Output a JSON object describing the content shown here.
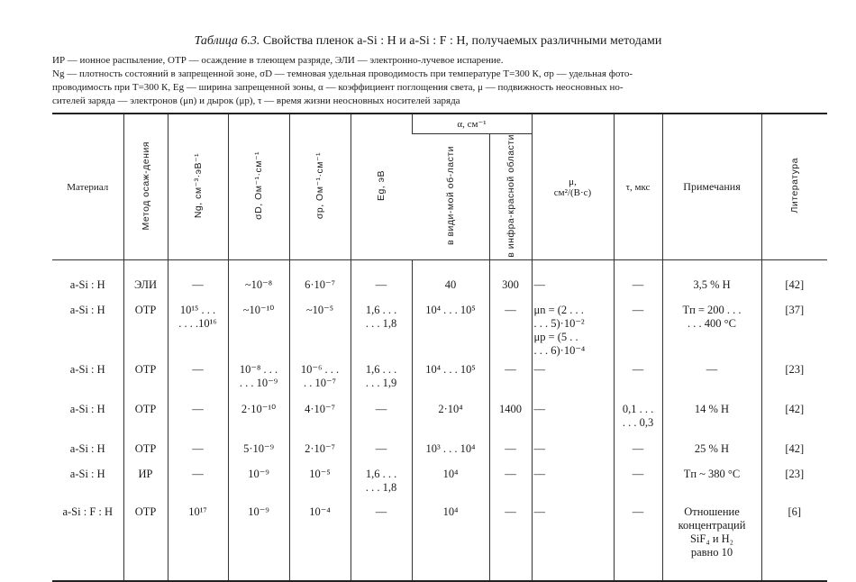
{
  "title": {
    "label": "Таблица 6.3.",
    "text": "Свойства пленок a-Si : H и a-Si : F : H, получаемых различными методами"
  },
  "notes": [
    "ИР — ионное распыление, ОТР — осаждение в тлеющем разряде, ЭЛИ — электронно-лучевое испарение.",
    "Ng — плотность состояний в запрещенной зоне, σD — темновая удельная проводимость при температуре T=300 К, σp — удельная фото-",
    "проводимость при T=300 К, Eg — ширина запрещенной зоны, α — коэффициент поглощения света, μ — подвижность неосновных но-",
    "сителей заряда — электронов (μn) и дырок (μp), τ — время жизни неосновных носителей заряда"
  ],
  "headers": {
    "material": "Материал",
    "method": "Метод осаж-дения",
    "ng": "Ng, см⁻³·эВ⁻¹",
    "sd": "σD, Ом⁻¹·см⁻¹",
    "sp": "σp, Ом⁻¹·см⁻¹",
    "eg": "Eg, эВ",
    "alpha": "α, см⁻¹",
    "alpha_vis": "в види-мой об-ласти",
    "alpha_ir": "в инфра-красной области",
    "mu": "μ,\nсм²/(В·с)",
    "tau": "τ, мкс",
    "notes": "Примечания",
    "ref": "Литература"
  },
  "rows": [
    [
      "a-Si : H",
      "ЭЛИ",
      "—",
      "~10⁻⁸",
      "6·10⁻⁷",
      "—",
      "40",
      "300",
      "—",
      "—",
      "3,5 % H",
      "[42]"
    ],
    [
      "a-Si : H",
      "ОТР",
      "10¹⁵ . . .\n. . . .10¹⁶",
      "~10⁻¹⁰",
      "~10⁻⁵",
      "1,6 . . .\n. . . 1,8",
      "10⁴ . . . 10⁵",
      "—",
      "μn = (2 . . .\n. . . 5)·10⁻²\nμp = (5 . .\n. . . 6)·10⁻⁴",
      "—",
      "Tп = 200 . . .\n. . . 400 °C",
      "[37]"
    ],
    [
      "a-Si : H",
      "ОТР",
      "—",
      "10⁻⁸ . . .\n. . . 10⁻⁹",
      "10⁻⁶ . . .\n. . 10⁻⁷",
      "1,6 . . .\n. . . 1,9",
      "10⁴ . . . 10⁵",
      "—",
      "—",
      "—",
      "—",
      "[23]"
    ],
    [
      "a-Si : H",
      "ОТР",
      "—",
      "2·10⁻¹⁰",
      "4·10⁻⁷",
      "—",
      "2·10⁴",
      "1400",
      "—",
      "0,1 . . .\n. . . 0,3",
      "14 % H",
      "[42]"
    ],
    [
      "a-Si : H",
      "ОТР",
      "—",
      "5·10⁻⁹",
      "2·10⁻⁷",
      "—",
      "10³ . . . 10⁴",
      "—",
      "—",
      "—",
      "25 % H",
      "[42]"
    ],
    [
      "a-Si : H",
      "ИР",
      "—",
      "10⁻⁹",
      "10⁻⁵",
      "1,6 . . .\n. . . 1,8",
      "10⁴",
      "—",
      "—",
      "—",
      "Tп ~ 380 °C",
      "[23]"
    ],
    [
      "a-Si : F : H",
      "ОТР",
      "10¹⁷",
      "10⁻⁹",
      "10⁻⁴",
      "—",
      "10⁴",
      "—",
      "—",
      "—",
      "Отношение\nконцентраций\nSiF₄ и H₂\nравно 10",
      "[6]"
    ]
  ]
}
